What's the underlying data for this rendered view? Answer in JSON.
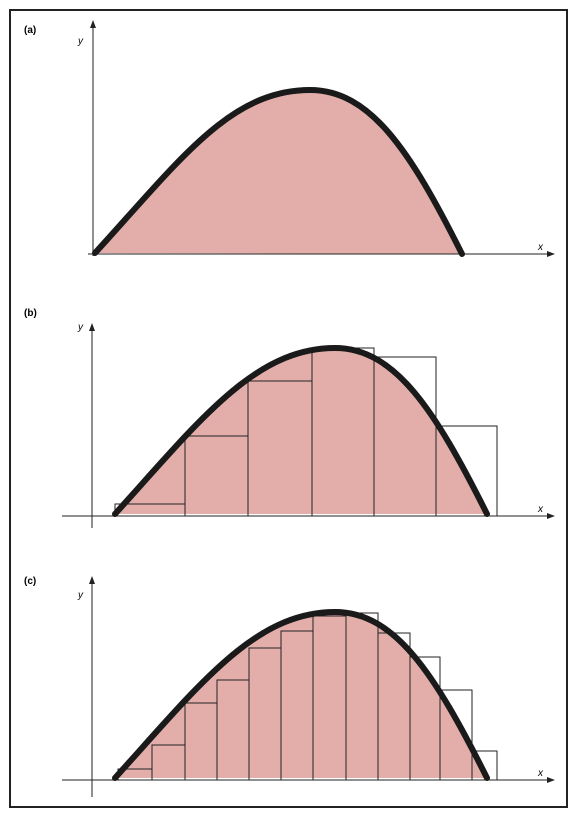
{
  "panels": [
    {
      "label": "(a)",
      "y_label": "y",
      "x_label": "x"
    },
    {
      "label": "(b)",
      "y_label": "y",
      "x_label": "x"
    },
    {
      "label": "(c)",
      "y_label": "y",
      "x_label": "x"
    }
  ]
}
